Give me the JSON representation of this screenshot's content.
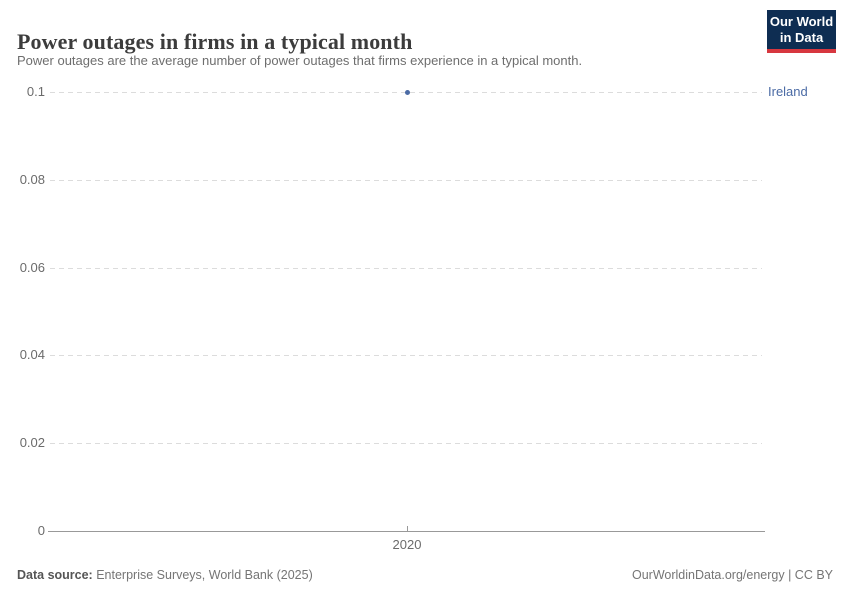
{
  "chart_data": {
    "type": "scatter",
    "title": "Power outages in firms in a typical month",
    "subtitle": "Power outages are the average number of power outages that firms experience in a typical month.",
    "xlabel": "",
    "ylabel": "",
    "x_ticks": [
      2020
    ],
    "y_ticks": [
      0,
      0.02,
      0.04,
      0.06,
      0.08,
      0.1
    ],
    "ylim": [
      0,
      0.1
    ],
    "grid": "horizontal-dashed",
    "legend_position": "entity-label-right",
    "series": [
      {
        "name": "Ireland",
        "color": "#4b6ba5",
        "points": [
          {
            "x": 2020,
            "y": 0.1
          }
        ]
      }
    ]
  },
  "logo": {
    "line1": "Our World",
    "line2": "in Data",
    "bg_color": "#0e2d52",
    "accent_color": "#d7373f"
  },
  "footer": {
    "source_label": "Data source:",
    "source_text": " Enterprise Surveys, World Bank (2025)",
    "credit": "OurWorldinData.org/energy | CC BY"
  }
}
